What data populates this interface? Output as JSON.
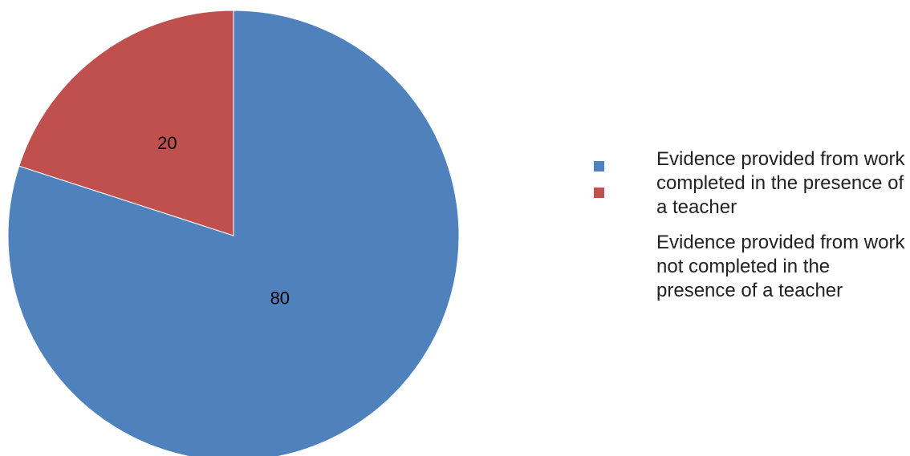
{
  "chart_data": {
    "type": "pie",
    "title": "",
    "slices": [
      {
        "label": "Evidence provided from work completed in the presence of a teacher",
        "value": 80,
        "color": "#4F81BD"
      },
      {
        "label": "Evidence provided from work not completed in the presence of a teacher",
        "value": 20,
        "color": "#C0504D"
      }
    ],
    "data_labels": [
      "80",
      "20"
    ],
    "legend_position": "right"
  },
  "legend": {
    "items": [
      {
        "text": "Evidence provided from work completed in the presence of a teacher",
        "color": "#4F81BD"
      },
      {
        "text": "Evidence provided from work not completed in the presence of a teacher",
        "color": "#C0504D"
      }
    ]
  }
}
